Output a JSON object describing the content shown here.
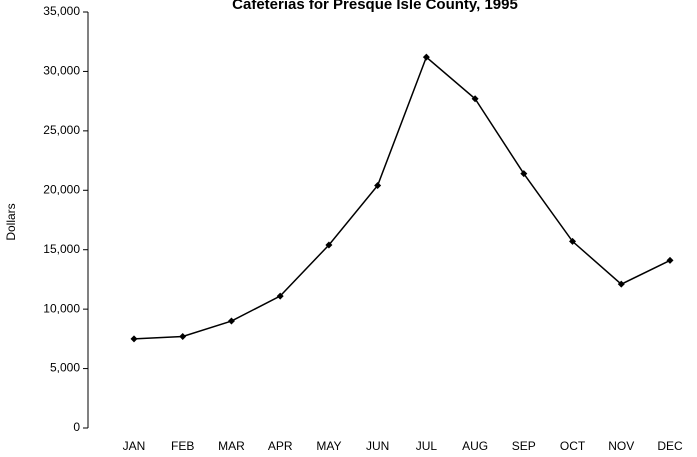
{
  "chart_data": {
    "type": "line",
    "title": "Cafeterias for Presque Isle County, 1995",
    "y_label": "Dollars",
    "categories": [
      "JAN",
      "FEB",
      "MAR",
      "APR",
      "MAY",
      "JUN",
      "JUL",
      "AUG",
      "SEP",
      "OCT",
      "NOV",
      "DEC"
    ],
    "values": [
      7500,
      7700,
      9000,
      11100,
      15400,
      20400,
      31200,
      27700,
      21400,
      15700,
      12100,
      14100
    ],
    "color": "#000000",
    "ylim": [
      0,
      35000
    ],
    "yticks": [
      0,
      {
        "value": 5000,
        "label": "5,000"
      },
      {
        "value": 10000,
        "label": "10,000"
      },
      {
        "value": 15000,
        "label": "15,000"
      },
      {
        "value": 20000,
        "label": "20,000"
      },
      {
        "value": 25000,
        "label": "25,000"
      },
      {
        "value": 30000,
        "label": "30,000"
      },
      {
        "value": 35000,
        "label": "35,000"
      }
    ],
    "grid": false
  }
}
